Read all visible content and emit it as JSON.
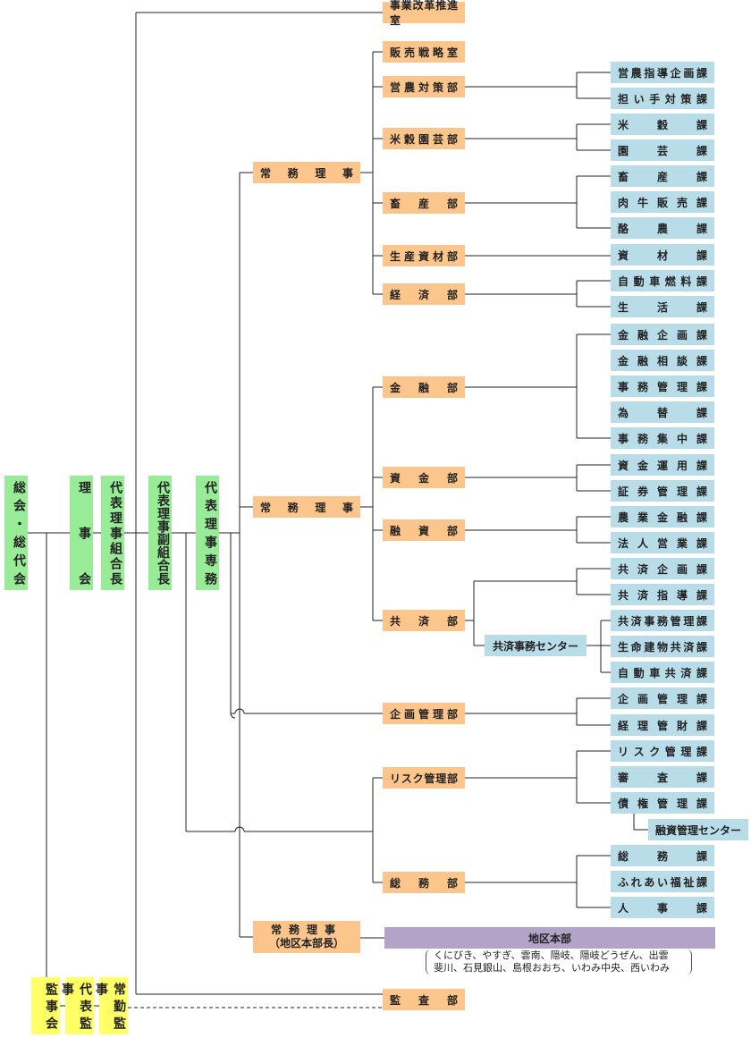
{
  "executive": {
    "general_meeting": "総会・総代会",
    "board": "理事会",
    "president": "代表理事組合長",
    "vice_president": "代表理事副組合長",
    "senior_managing": "代表理事専務"
  },
  "auditors": {
    "board": "監事会",
    "representative": "代表監事",
    "full_time": "常勤監事"
  },
  "managing_directors": {
    "first": "常務理事",
    "second": "常務理事",
    "third_line1": "常務理事",
    "third_line2": "（地区本部長）"
  },
  "departments": {
    "reform_office": "事業改革推進室",
    "sales_strategy": "販売戦略室",
    "farming": "営農対策部",
    "rice_horticulture": "米穀園芸部",
    "livestock": "畜産部",
    "materials": "生産資材部",
    "economy": "経済部",
    "finance": "金融部",
    "funds": "資金部",
    "loans": "融資部",
    "mutual_aid": "共済部",
    "planning": "企画管理部",
    "risk": "リスク管理部",
    "general_affairs": "総務部",
    "audit": "監査部"
  },
  "sections": {
    "farming_guidance": "営農指導企画課",
    "successor": "担い手対策課",
    "rice": "米穀課",
    "horticulture": "園芸課",
    "livestock": "畜産課",
    "beef_sales": "肉牛販売課",
    "dairy": "酪農課",
    "materials": "資材課",
    "auto_fuel": "自動車燃料課",
    "living": "生活課",
    "finance_planning": "金融企画課",
    "finance_consult": "金融相談課",
    "office_admin": "事務管理課",
    "exchange": "為替課",
    "office_central": "事務集中課",
    "fund_management": "資金運用課",
    "securities": "証券管理課",
    "agri_finance": "農業金融課",
    "corporate_sales": "法人営業課",
    "mutual_planning": "共済企画課",
    "mutual_guidance": "共済指導課",
    "mutual_office_admin": "共済事務管理課",
    "life_building": "生命建物共済課",
    "auto_mutual": "自動車共済課",
    "planning_admin": "企画管理課",
    "accounting": "経理管財課",
    "risk_admin": "リスク管理課",
    "screening": "審査課",
    "claims": "債権管理課",
    "general": "総務課",
    "welfare": "ふれあい福祉課",
    "personnel": "人事課"
  },
  "centers": {
    "mutual_office_center": "共済事務センター",
    "loan_center": "融資管理センター"
  },
  "regional": {
    "title": "地区本部",
    "areas_line1": "くにびき、やすぎ、雲南、隠岐、隠岐どうぜん、出雲",
    "areas_line2": "斐川、石見銀山、島根おおち、いわみ中央、西いわみ"
  },
  "colors": {
    "executive": "#98ec98",
    "department": "#fbc58c",
    "section": "#b8dde9",
    "regional": "#b3a3c8",
    "auditor": "#ffff66"
  }
}
